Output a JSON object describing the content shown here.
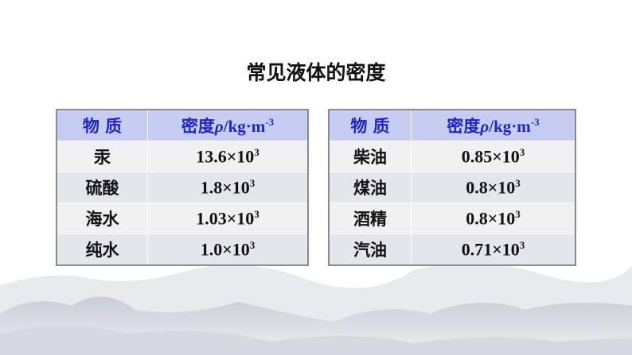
{
  "title": "常见液体的密度",
  "header": {
    "substance": "物 质",
    "density": "密度",
    "rho": "ρ",
    "unit": "/kg·m",
    "unit_exp": "-3"
  },
  "left_rows": [
    {
      "name": "汞",
      "base": "13.6×10",
      "exp": "3"
    },
    {
      "name": "硫酸",
      "base": "1.8×10",
      "exp": "3"
    },
    {
      "name": "海水",
      "base": "1.03×10",
      "exp": "3"
    },
    {
      "name": "纯水",
      "base": "1.0×10",
      "exp": "3"
    }
  ],
  "right_rows": [
    {
      "name": "柴油",
      "base": "0.85×10",
      "exp": "3"
    },
    {
      "name": "煤油",
      "base": "0.8×10",
      "exp": "3"
    },
    {
      "name": "酒精",
      "base": "0.8×10",
      "exp": "3"
    },
    {
      "name": "汽油",
      "base": "0.71×10",
      "exp": "3"
    }
  ],
  "colors": {
    "header_bg": "#c7cdf2",
    "header_text": "#2323c8"
  }
}
